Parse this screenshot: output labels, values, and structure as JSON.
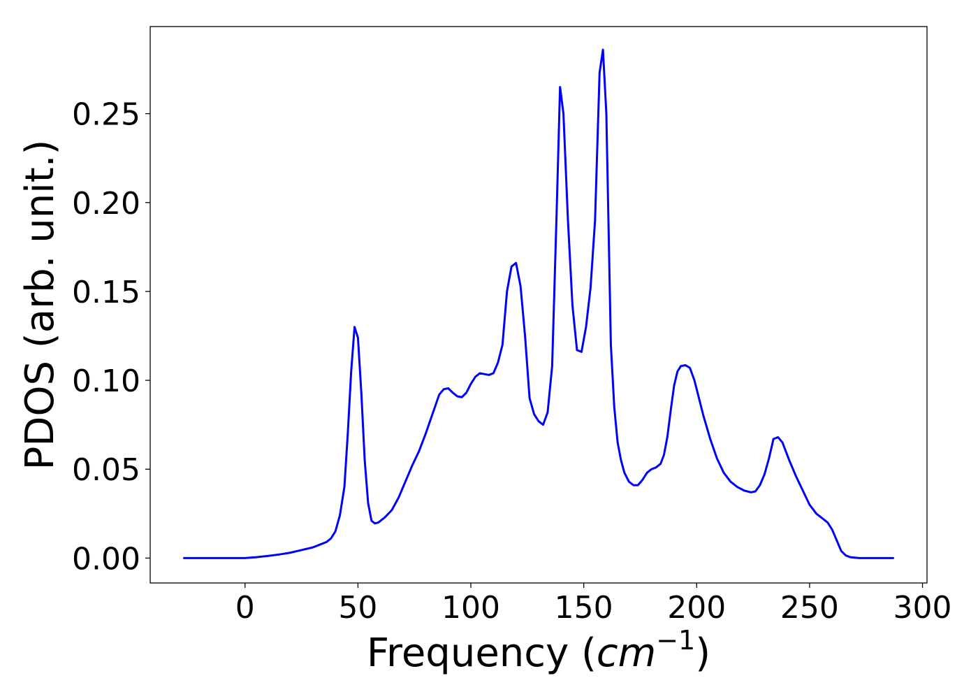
{
  "chart_data": {
    "type": "line",
    "xlabel": "Frequency (",
    "xlabel_math": "cm",
    "xlabel_sup": "−1",
    "xlabel_end": ")",
    "ylabel": "PDOS (arb. unit.)",
    "xlim": [
      -42,
      302
    ],
    "ylim": [
      -0.014,
      0.299
    ],
    "xticks": [
      0,
      50,
      100,
      150,
      200,
      250,
      300
    ],
    "xtick_labels": [
      "0",
      "50",
      "100",
      "150",
      "200",
      "250",
      "300"
    ],
    "yticks": [
      0.0,
      0.05,
      0.1,
      0.15,
      0.2,
      0.25
    ],
    "ytick_labels": [
      "0.00",
      "0.05",
      "0.10",
      "0.15",
      "0.20",
      "0.25"
    ],
    "grid": false,
    "series": [
      {
        "color": "#0000ff",
        "x": [
          -27,
          -10,
          0,
          5,
          10,
          15,
          20,
          25,
          30,
          33,
          36,
          38,
          40,
          42,
          44,
          45.5,
          47,
          48.5,
          50,
          51.5,
          53,
          54.5,
          56,
          57.5,
          59,
          62,
          65,
          68,
          71,
          74,
          77,
          80,
          83,
          86,
          88,
          90,
          92,
          94,
          96,
          98,
          100,
          102,
          104,
          106,
          108,
          110,
          112,
          114,
          116,
          118,
          120,
          122,
          124,
          126,
          128,
          130,
          132,
          134,
          136,
          138,
          139.5,
          141,
          143,
          145,
          147,
          149,
          151,
          153,
          155,
          157,
          158.5,
          160,
          162,
          163.5,
          165,
          166.5,
          168,
          170,
          172,
          174,
          176,
          178,
          180,
          182,
          184,
          185.5,
          187,
          188.5,
          190,
          191.5,
          193,
          195,
          197,
          199,
          201,
          203,
          206,
          209,
          212,
          215,
          218,
          221,
          224,
          226,
          228,
          230,
          232,
          234,
          236,
          238,
          241,
          244,
          247,
          250,
          253,
          256,
          258,
          260,
          262,
          264,
          266,
          268,
          272,
          280,
          287
        ],
        "y": [
          0.0,
          0.0,
          0.0,
          0.0005,
          0.0012,
          0.002,
          0.003,
          0.0045,
          0.006,
          0.0075,
          0.009,
          0.011,
          0.015,
          0.024,
          0.04,
          0.07,
          0.105,
          0.13,
          0.124,
          0.093,
          0.055,
          0.031,
          0.021,
          0.0195,
          0.02,
          0.023,
          0.027,
          0.034,
          0.043,
          0.052,
          0.06,
          0.07,
          0.081,
          0.092,
          0.095,
          0.0955,
          0.093,
          0.091,
          0.0905,
          0.093,
          0.098,
          0.102,
          0.104,
          0.1035,
          0.103,
          0.104,
          0.11,
          0.12,
          0.15,
          0.164,
          0.166,
          0.153,
          0.125,
          0.09,
          0.081,
          0.077,
          0.075,
          0.082,
          0.108,
          0.195,
          0.265,
          0.25,
          0.19,
          0.142,
          0.117,
          0.116,
          0.13,
          0.152,
          0.19,
          0.273,
          0.286,
          0.25,
          0.12,
          0.085,
          0.065,
          0.055,
          0.048,
          0.043,
          0.041,
          0.041,
          0.044,
          0.048,
          0.05,
          0.051,
          0.053,
          0.058,
          0.068,
          0.083,
          0.097,
          0.105,
          0.108,
          0.1085,
          0.107,
          0.1,
          0.09,
          0.08,
          0.067,
          0.056,
          0.048,
          0.043,
          0.04,
          0.038,
          0.037,
          0.0375,
          0.041,
          0.047,
          0.056,
          0.067,
          0.068,
          0.065,
          0.055,
          0.046,
          0.038,
          0.03,
          0.025,
          0.022,
          0.02,
          0.016,
          0.01,
          0.004,
          0.0015,
          0.0005,
          0.0,
          0.0,
          0.0
        ]
      }
    ]
  }
}
